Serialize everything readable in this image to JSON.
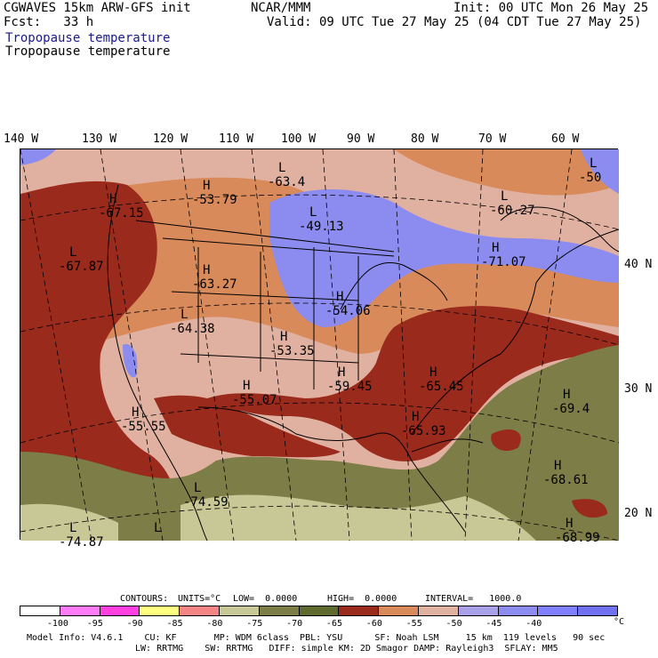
{
  "header": {
    "model_line": "CGWAVES 15km ARW-GFS init",
    "center": "NCAR/MMM",
    "init": "Init: 00 UTC Mon 26 May 25",
    "fcst": "Fcst:   33 h",
    "valid": "Valid: 09 UTC Tue 27 May 25 (04 CDT Tue 27 May 25)",
    "field_title_blue": "Tropopause temperature",
    "field_title_black": "Tropopause temperature"
  },
  "axes": {
    "lon_labels": [
      "140 W",
      "130 W",
      "120 W",
      "110 W",
      "100 W",
      "90 W",
      "80 W",
      "70 W",
      "60 W"
    ],
    "lat_labels": [
      "40 N",
      "30 N",
      "20 N"
    ]
  },
  "map_labels": [
    {
      "type": "H",
      "value": "-53.79"
    },
    {
      "type": "L",
      "value": "-63.4"
    },
    {
      "type": "L",
      "value": "-49.13"
    },
    {
      "type": "L",
      "value": "-60.27"
    },
    {
      "type": "L",
      "value": "-50"
    },
    {
      "type": "H",
      "value": "-67.15"
    },
    {
      "type": "L",
      "value": "-67.87"
    },
    {
      "type": "H",
      "value": "-63.27"
    },
    {
      "type": "H",
      "value": "-71.07"
    },
    {
      "type": "H",
      "value": "-54.06"
    },
    {
      "type": "L",
      "value": "-64.38"
    },
    {
      "type": "H",
      "value": "-53.35"
    },
    {
      "type": "H",
      "value": "-59.45"
    },
    {
      "type": "H",
      "value": "-65.45"
    },
    {
      "type": "H",
      "value": "-55.07"
    },
    {
      "type": "H",
      "value": "-65.93"
    },
    {
      "type": "H",
      "value": "-55.55"
    },
    {
      "type": "H",
      "value": "-69.4"
    },
    {
      "type": "H",
      "value": "-68.61"
    },
    {
      "type": "L",
      "value": "-74.59"
    },
    {
      "type": "L",
      "value": "-74.87"
    },
    {
      "type": "H",
      "value": "-68.99"
    },
    {
      "type": "L",
      "value": ""
    }
  ],
  "contour_info": {
    "contours": "CONTOURS:",
    "units": "UNITS=°C",
    "low": "LOW=  0.0000",
    "high": "HIGH=  0.0000",
    "interval": "INTERVAL=   1000.0"
  },
  "colorbar": {
    "colors": [
      "#ffffff",
      "#ff7bf7",
      "#ff40e0",
      "#ffff80",
      "#f58585",
      "#c8c896",
      "#7d7d48",
      "#5f6a2f",
      "#9a2a1c",
      "#d98a5a",
      "#e0b0a0",
      "#a8a0e8",
      "#8c8cf0",
      "#8080ff",
      "#7070f0"
    ],
    "ticks": [
      "-100",
      "-95",
      "-90",
      "-85",
      "-80",
      "-75",
      "-70",
      "-65",
      "-60",
      "-55",
      "-50",
      "-45",
      "-40"
    ],
    "unit": "°C"
  },
  "footer": {
    "line1": "Model Info: V4.6.1    CU: KF       MP: WDM 6class  PBL: YSU      SF: Noah LSM     15 km  119 levels   90 sec",
    "line2": "LW: RRTMG    SW: RRTMG   DIFF: simple KM: 2D Smagor DAMP: Rayleigh3  SFLAY: MM5"
  },
  "palette": {
    "pink_light": "#e0b0a0",
    "orange": "#d98a5a",
    "red_brown": "#9a2a1c",
    "olive": "#5f6a2f",
    "olive_light": "#7d7d48",
    "khaki": "#c8c896",
    "lavender": "#8c8cf0"
  }
}
